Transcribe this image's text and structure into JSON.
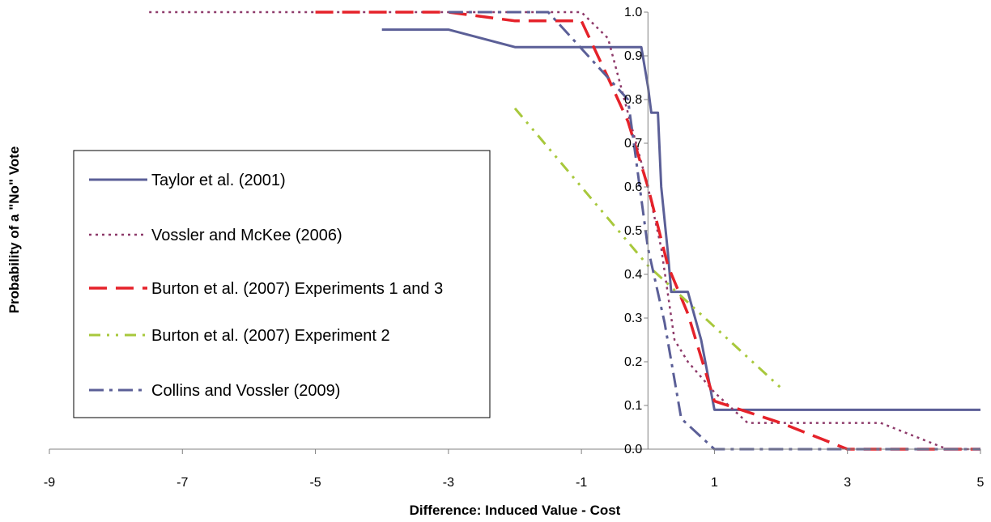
{
  "chart_data": {
    "type": "line",
    "title": "",
    "xlabel": "Difference: Induced Value - Cost",
    "ylabel": "Probability of a \"No\" Vote",
    "xlim": [
      -9,
      5
    ],
    "ylim": [
      0,
      1
    ],
    "x_ticks": [
      "-9",
      "-7",
      "-5",
      "-3",
      "-1",
      "1",
      "3",
      "5"
    ],
    "y_ticks": [
      "0.0",
      "0.1",
      "0.2",
      "0.3",
      "0.4",
      "0.5",
      "0.6",
      "0.7",
      "0.8",
      "0.9",
      "1.0"
    ],
    "y_axis_crosses_x_at": 0,
    "grid": false,
    "legend_position": "left",
    "series": [
      {
        "name": "Taylor et al. (2001)",
        "color": "#5b5f97",
        "dash": "solid",
        "points": [
          [
            -4,
            0.96
          ],
          [
            -3,
            0.96
          ],
          [
            -2,
            0.92
          ],
          [
            -0.2,
            0.92
          ],
          [
            -0.1,
            0.92
          ],
          [
            0,
            0.83
          ],
          [
            0.05,
            0.77
          ],
          [
            0.15,
            0.77
          ],
          [
            0.2,
            0.6
          ],
          [
            0.3,
            0.45
          ],
          [
            0.35,
            0.36
          ],
          [
            0.6,
            0.36
          ],
          [
            0.8,
            0.25
          ],
          [
            1,
            0.09
          ],
          [
            5,
            0.09
          ]
        ]
      },
      {
        "name": "Vossler and McKee (2006)",
        "color": "#8e3a6a",
        "dash": "dot",
        "points": [
          [
            -7.5,
            1.0
          ],
          [
            -1,
            1.0
          ],
          [
            -0.6,
            0.94
          ],
          [
            -0.25,
            0.74
          ],
          [
            0,
            0.6
          ],
          [
            0.2,
            0.46
          ],
          [
            0.4,
            0.25
          ],
          [
            0.6,
            0.2
          ],
          [
            1,
            0.13
          ],
          [
            1.5,
            0.06
          ],
          [
            3,
            0.06
          ],
          [
            3.5,
            0.06
          ],
          [
            4,
            0.03
          ],
          [
            4.5,
            0.0
          ],
          [
            5,
            0.0
          ]
        ]
      },
      {
        "name": "Burton et al. (2007) Experiments 1 and 3",
        "color": "#e5222a",
        "dash": "longdash",
        "points": [
          [
            -5,
            1.0
          ],
          [
            -3,
            1.0
          ],
          [
            -2,
            0.98
          ],
          [
            -1,
            0.98
          ],
          [
            -0.6,
            0.85
          ],
          [
            -0.3,
            0.75
          ],
          [
            0,
            0.6
          ],
          [
            0.3,
            0.42
          ],
          [
            0.6,
            0.31
          ],
          [
            1,
            0.11
          ],
          [
            2,
            0.06
          ],
          [
            3,
            0.0
          ],
          [
            5,
            0.0
          ]
        ]
      },
      {
        "name": "Burton et al. (2007) Experiment 2",
        "color": "#a8c83c",
        "dash": "dashdotdot",
        "points": [
          [
            -2,
            0.78
          ],
          [
            0,
            0.42
          ],
          [
            2,
            0.14
          ]
        ]
      },
      {
        "name": "Collins and Vossler (2009)",
        "color": "#5b5f97",
        "dash": "dashdot",
        "points": [
          [
            -3,
            1.0
          ],
          [
            -1.5,
            1.0
          ],
          [
            -0.3,
            0.8
          ],
          [
            0,
            0.46
          ],
          [
            0.25,
            0.29
          ],
          [
            0.5,
            0.07
          ],
          [
            1,
            0.0
          ],
          [
            5,
            0.0
          ]
        ]
      }
    ]
  }
}
